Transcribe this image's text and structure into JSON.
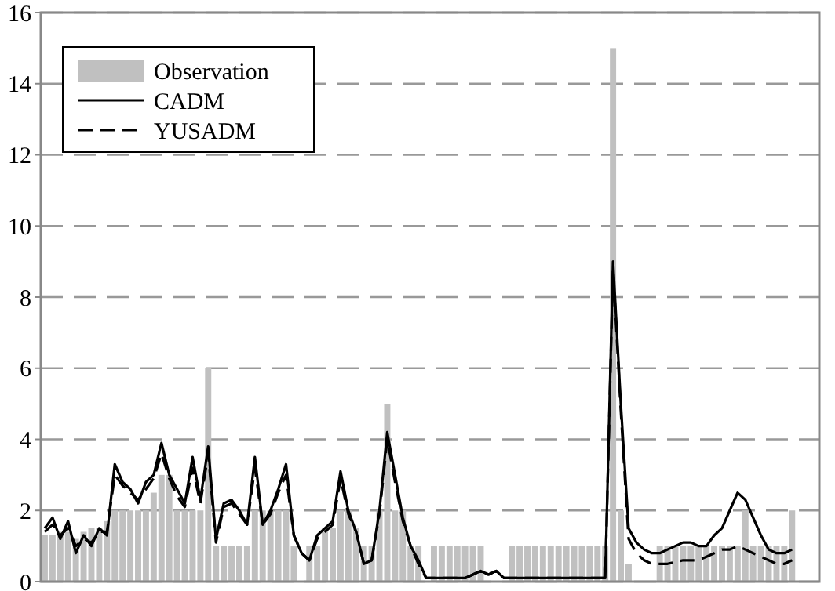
{
  "chart_data": {
    "type": "bar",
    "categories": [
      null,
      null,
      null,
      null,
      null,
      null,
      null,
      null,
      null,
      null,
      null,
      null,
      null,
      null,
      null,
      null,
      null,
      null,
      null,
      null,
      null,
      null,
      null,
      null,
      null,
      null,
      null,
      null,
      null,
      null,
      null,
      null,
      null,
      null,
      null,
      null,
      null,
      null,
      null,
      null,
      null,
      null,
      null,
      null,
      null,
      null,
      null,
      null,
      null,
      null,
      null,
      null,
      null,
      null,
      null,
      null,
      null,
      null,
      null,
      null,
      null,
      null,
      null,
      null,
      null,
      null,
      null,
      null,
      null,
      null,
      null,
      null,
      null,
      null,
      null,
      null,
      null,
      null,
      null,
      null,
      null,
      null,
      null,
      null,
      null,
      null,
      null,
      null,
      null,
      null,
      null,
      null,
      null,
      null,
      null,
      null,
      null,
      null,
      null,
      null
    ],
    "series": [
      {
        "name": "Observation",
        "color": "#c0c0c0",
        "values": [
          1.3,
          1.3,
          1.4,
          1.4,
          1.2,
          1.4,
          1.5,
          1.5,
          1.7,
          2,
          2,
          2,
          2,
          2,
          2.5,
          3,
          3,
          2,
          2,
          2,
          2,
          6,
          1,
          1,
          1,
          1,
          1,
          2,
          2,
          2,
          2,
          2,
          1,
          0,
          1,
          1,
          1.5,
          1.5,
          2,
          2,
          1.5,
          1,
          1,
          2,
          5,
          2,
          2,
          1,
          1,
          0,
          1,
          1,
          1,
          1,
          1,
          1,
          1,
          0,
          0,
          0,
          1,
          1,
          1,
          1,
          1,
          1,
          1,
          1,
          1,
          1,
          1,
          1,
          1,
          15,
          2,
          0.5,
          0,
          0,
          0,
          1,
          1,
          1,
          1,
          1,
          1,
          1,
          1,
          1,
          1,
          1,
          2,
          1,
          1,
          1,
          1,
          1,
          2,
          null,
          null,
          null
        ]
      },
      {
        "name": "CADM",
        "type": "line",
        "color": "#000000",
        "line_style": "solid",
        "values": [
          1.5,
          1.8,
          1.2,
          1.7,
          0.8,
          1.3,
          1.0,
          1.5,
          1.3,
          3.3,
          2.8,
          2.6,
          2.2,
          2.8,
          3.0,
          3.9,
          3.0,
          2.6,
          2.2,
          3.5,
          2.3,
          3.8,
          1.2,
          2.2,
          2.3,
          2.0,
          1.6,
          3.5,
          1.6,
          2.0,
          2.6,
          3.3,
          1.3,
          0.8,
          0.6,
          1.3,
          1.5,
          1.7,
          3.1,
          2.0,
          1.4,
          0.5,
          0.6,
          2.0,
          4.2,
          3.0,
          1.8,
          1.0,
          0.6,
          0.1,
          0.1,
          0.1,
          0.1,
          0.1,
          0.1,
          0.2,
          0.3,
          0.2,
          0.3,
          0.1,
          0.1,
          0.1,
          0.1,
          0.1,
          0.1,
          0.1,
          0.1,
          0.1,
          0.1,
          0.1,
          0.1,
          0.1,
          0.1,
          9,
          5,
          1.5,
          1.1,
          0.9,
          0.8,
          0.8,
          0.9,
          1.0,
          1.1,
          1.1,
          1.0,
          1.0,
          1.3,
          1.5,
          2.0,
          2.5,
          2.3,
          1.8,
          1.3,
          0.9,
          0.8,
          0.8,
          0.9,
          null,
          null,
          null
        ]
      },
      {
        "name": "YUSADM",
        "type": "line",
        "color": "#000000",
        "line_style": "dashed",
        "values": [
          1.4,
          1.6,
          1.3,
          1.5,
          1.0,
          1.2,
          1.1,
          1.4,
          1.4,
          3.0,
          2.7,
          2.5,
          2.3,
          2.6,
          2.9,
          3.6,
          2.9,
          2.4,
          2.1,
          3.2,
          2.2,
          3.6,
          1.1,
          2.1,
          2.2,
          1.9,
          1.6,
          3.2,
          1.6,
          1.9,
          2.5,
          3.0,
          1.3,
          0.8,
          0.6,
          1.2,
          1.4,
          1.6,
          2.9,
          1.9,
          1.4,
          0.5,
          0.6,
          1.9,
          4.0,
          2.8,
          1.7,
          1.0,
          0.5,
          0.1,
          0.1,
          0.1,
          0.1,
          0.1,
          0.1,
          0.2,
          0.3,
          0.2,
          0.3,
          0.1,
          0.1,
          0.1,
          0.1,
          0.1,
          0.1,
          0.1,
          0.1,
          0.1,
          0.1,
          0.1,
          0.1,
          0.1,
          0.1,
          8.8,
          4.8,
          1.2,
          0.8,
          0.6,
          0.5,
          0.5,
          0.5,
          0.55,
          0.6,
          0.6,
          0.6,
          0.7,
          0.8,
          0.9,
          0.9,
          1.0,
          0.9,
          0.8,
          0.7,
          0.6,
          0.5,
          0.5,
          0.6,
          null,
          null,
          null
        ]
      }
    ],
    "ylim": [
      0,
      16
    ],
    "yticks": [
      0,
      2,
      4,
      6,
      8,
      10,
      12,
      14,
      16
    ],
    "grid": "y",
    "legend": "top left",
    "tick_labels": "y"
  }
}
